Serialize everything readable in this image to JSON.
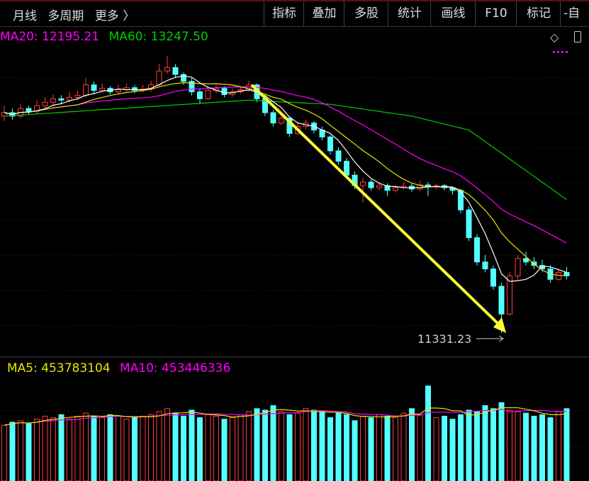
{
  "toolbar": {
    "left_items": [
      "月线",
      "多周期",
      "更多 〉"
    ],
    "buttons": [
      "指标",
      "叠加",
      "多股",
      "统计",
      "画线",
      "F10",
      "标记",
      "-自"
    ]
  },
  "price_legend": {
    "ma20": "MA20: 12195.21",
    "ma60": "MA60: 13247.50"
  },
  "volume_legend": {
    "ma5": "MA5: 453783104",
    "ma10": "MA10: 453446336"
  },
  "annotation": {
    "low_label": "11331.23",
    "arrow_color": "#ffff33"
  },
  "icons": [
    "diamond-icon",
    "panel-toggle-icon"
  ],
  "colors": {
    "up": "#ff3b3b",
    "down": "#54ffff",
    "ma5": "#ffffff",
    "ma10": "#e6e600",
    "ma20": "#ff00ff",
    "ma60": "#00cc00",
    "vol_ma5": "#e6e600",
    "vol_ma10": "#ff00ff"
  },
  "chart_data": {
    "type": "candlestick",
    "price_ylim": [
      11200,
      15500
    ],
    "candles": [
      [
        14450,
        14600,
        14380,
        14500
      ],
      [
        14500,
        14560,
        14400,
        14450
      ],
      [
        14450,
        14620,
        14420,
        14560
      ],
      [
        14560,
        14600,
        14470,
        14520
      ],
      [
        14520,
        14680,
        14480,
        14600
      ],
      [
        14600,
        14720,
        14560,
        14650
      ],
      [
        14650,
        14760,
        14600,
        14700
      ],
      [
        14700,
        14750,
        14620,
        14680
      ],
      [
        14680,
        14800,
        14640,
        14720
      ],
      [
        14720,
        14820,
        14680,
        14750
      ],
      [
        14750,
        15000,
        14720,
        14900
      ],
      [
        14900,
        14950,
        14780,
        14820
      ],
      [
        14820,
        14920,
        14790,
        14850
      ],
      [
        14850,
        14880,
        14760,
        14800
      ],
      [
        14800,
        14900,
        14770,
        14830
      ],
      [
        14830,
        14920,
        14800,
        14860
      ],
      [
        14860,
        14900,
        14780,
        14820
      ],
      [
        14820,
        14900,
        14790,
        14840
      ],
      [
        14840,
        14960,
        14800,
        14900
      ],
      [
        14900,
        15200,
        14880,
        15100
      ],
      [
        15100,
        15320,
        15060,
        15150
      ],
      [
        15150,
        15200,
        15000,
        15050
      ],
      [
        15050,
        15080,
        14900,
        14950
      ],
      [
        14950,
        15000,
        14750,
        14800
      ],
      [
        14800,
        14850,
        14620,
        14700
      ],
      [
        14700,
        14880,
        14680,
        14820
      ],
      [
        14820,
        14900,
        14780,
        14850
      ],
      [
        14850,
        14880,
        14720,
        14760
      ],
      [
        14760,
        14850,
        14730,
        14800
      ],
      [
        14800,
        14880,
        14770,
        14830
      ],
      [
        14830,
        14960,
        14800,
        14900
      ],
      [
        14900,
        14920,
        14650,
        14700
      ],
      [
        14700,
        14720,
        14450,
        14500
      ],
      [
        14500,
        14540,
        14300,
        14350
      ],
      [
        14350,
        14480,
        14320,
        14420
      ],
      [
        14420,
        14450,
        14150,
        14200
      ],
      [
        14200,
        14360,
        14180,
        14300
      ],
      [
        14300,
        14400,
        14260,
        14350
      ],
      [
        14350,
        14380,
        14200,
        14250
      ],
      [
        14250,
        14300,
        14100,
        14150
      ],
      [
        14150,
        14180,
        13900,
        13950
      ],
      [
        13950,
        14000,
        13750,
        13800
      ],
      [
        13800,
        13850,
        13550,
        13600
      ],
      [
        13600,
        13650,
        13400,
        13450
      ],
      [
        13450,
        13560,
        13200,
        13500
      ],
      [
        13500,
        13540,
        13380,
        13420
      ],
      [
        13420,
        13500,
        13380,
        13450
      ],
      [
        13450,
        13480,
        13300,
        13380
      ],
      [
        13380,
        13460,
        13350,
        13420
      ],
      [
        13420,
        13500,
        13400,
        13440
      ],
      [
        13440,
        13480,
        13360,
        13400
      ],
      [
        13400,
        13520,
        13380,
        13460
      ],
      [
        13460,
        13500,
        13300,
        13430
      ],
      [
        13430,
        13480,
        13400,
        13450
      ],
      [
        13450,
        13470,
        13380,
        13420
      ],
      [
        13420,
        13440,
        13320,
        13380
      ],
      [
        13380,
        13400,
        13050,
        13100
      ],
      [
        13100,
        13150,
        12650,
        12700
      ],
      [
        12700,
        12750,
        12300,
        12350
      ],
      [
        12350,
        12450,
        12200,
        12250
      ],
      [
        12250,
        12300,
        11950,
        12000
      ],
      [
        12000,
        12050,
        11331.23,
        11600
      ],
      [
        11600,
        12200,
        11580,
        12150
      ],
      [
        12150,
        12450,
        12100,
        12400
      ],
      [
        12400,
        12500,
        12300,
        12350
      ],
      [
        12350,
        12420,
        12250,
        12300
      ],
      [
        12300,
        12380,
        12200,
        12250
      ],
      [
        12250,
        12300,
        12050,
        12100
      ],
      [
        12100,
        12250,
        12080,
        12200
      ],
      [
        12200,
        12280,
        12100,
        12150
      ]
    ],
    "ma60_points": [
      [
        0,
        14450
      ],
      [
        30,
        14680
      ],
      [
        40,
        14620
      ],
      [
        50,
        14450
      ],
      [
        57,
        14250
      ],
      [
        69,
        13247.5
      ]
    ],
    "volume_ylim": [
      0,
      700000000
    ],
    "volumes": [
      370000000,
      390000000,
      400000000,
      380000000,
      410000000,
      430000000,
      420000000,
      440000000,
      410000000,
      430000000,
      450000000,
      430000000,
      420000000,
      440000000,
      430000000,
      410000000,
      420000000,
      430000000,
      440000000,
      460000000,
      480000000,
      450000000,
      430000000,
      470000000,
      420000000,
      440000000,
      430000000,
      410000000,
      420000000,
      440000000,
      460000000,
      480000000,
      470000000,
      500000000,
      460000000,
      440000000,
      450000000,
      480000000,
      470000000,
      460000000,
      420000000,
      450000000,
      440000000,
      400000000,
      430000000,
      420000000,
      440000000,
      430000000,
      420000000,
      450000000,
      480000000,
      440000000,
      630000000,
      420000000,
      430000000,
      410000000,
      440000000,
      470000000,
      460000000,
      500000000,
      480000000,
      520000000,
      470000000,
      460000000,
      450000000,
      430000000,
      440000000,
      420000000,
      460000000,
      480000000
    ]
  }
}
